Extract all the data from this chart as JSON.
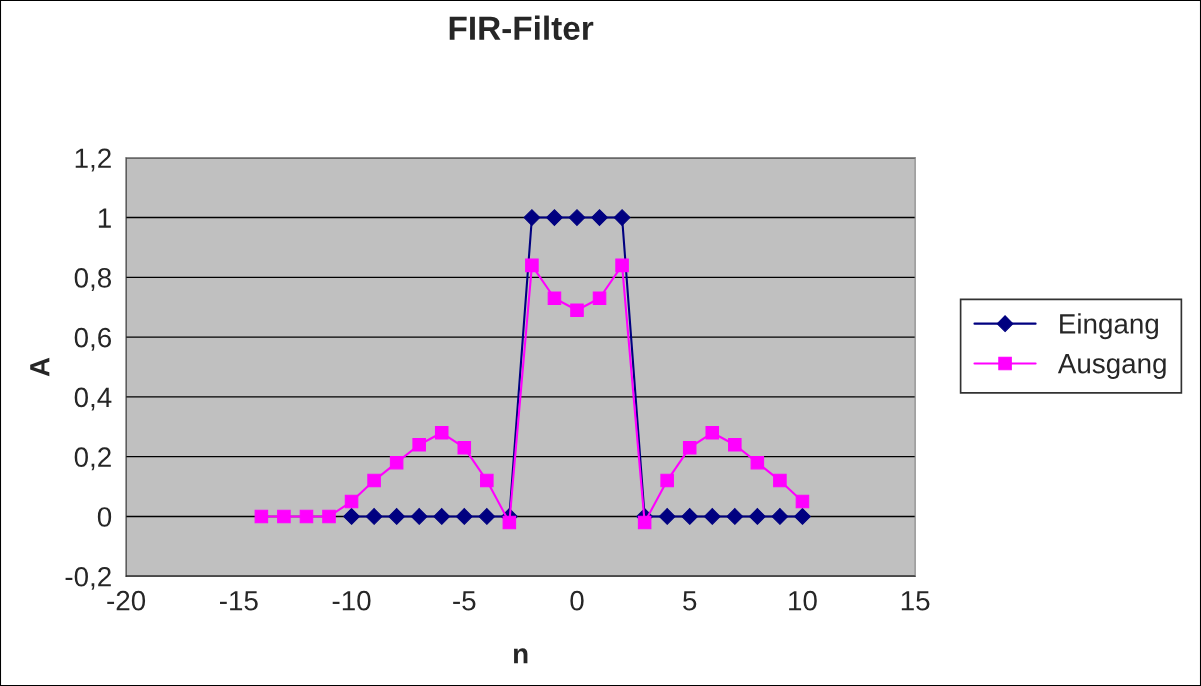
{
  "chart_data": {
    "type": "line",
    "title": "FIR-Filter",
    "xlabel": "n",
    "ylabel": "A",
    "xlim": [
      -20,
      15
    ],
    "xticks": [
      -20,
      -15,
      -10,
      -5,
      0,
      5,
      10,
      15
    ],
    "ylim": [
      -0.2,
      1.2
    ],
    "yticks": [
      {
        "value": -0.2,
        "label": "-0,2"
      },
      0,
      {
        "value": 0.2,
        "label": "0,2"
      },
      {
        "value": 0.4,
        "label": "0,4"
      },
      {
        "value": 0.6,
        "label": "0,6"
      },
      {
        "value": 0.8,
        "label": "0,8"
      },
      1,
      {
        "value": 1.2,
        "label": "1,2"
      }
    ],
    "grid": "y",
    "legend": "right",
    "series": [
      {
        "name": "Eingang",
        "color": "#000080",
        "marker": "diamond",
        "x": [
          -10,
          -9,
          -8,
          -7,
          -6,
          -5,
          -4,
          -3,
          -2,
          -1,
          0,
          1,
          2,
          3,
          4,
          5,
          6,
          7,
          8,
          9,
          10
        ],
        "values": [
          0,
          0,
          0,
          0,
          0,
          0,
          0,
          0,
          1,
          1,
          1,
          1,
          1,
          0,
          0,
          0,
          0,
          0,
          0,
          0,
          0
        ]
      },
      {
        "name": "Ausgang",
        "color": "#ff00ff",
        "marker": "square",
        "x": [
          -14,
          -13,
          -12,
          -11,
          -10,
          -9,
          -8,
          -7,
          -6,
          -5,
          -4,
          -3,
          -2,
          -1,
          0,
          1,
          2,
          3,
          4,
          5,
          6,
          7,
          8,
          9,
          10
        ],
        "values": [
          0,
          0,
          0,
          0,
          0.05,
          0.12,
          0.18,
          0.24,
          0.28,
          0.23,
          0.12,
          -0.02,
          0.84,
          0.73,
          0.69,
          0.73,
          0.84,
          -0.02,
          0.12,
          0.23,
          0.28,
          0.24,
          0.18,
          0.12,
          0.05
        ]
      }
    ]
  }
}
